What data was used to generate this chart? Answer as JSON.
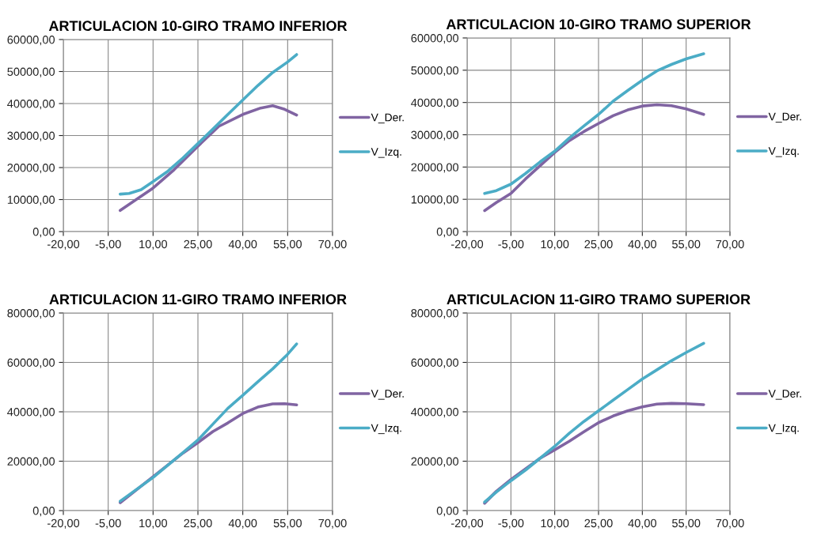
{
  "chart_data": [
    {
      "type": "line",
      "title": "ARTICULACION 10-GIRO TRAMO INFERIOR",
      "legend": "right",
      "grid": true,
      "marker": "none",
      "line_style": "solid",
      "xlim": [
        -20,
        70
      ],
      "xticks": [
        {
          "value": -20,
          "label": "-20,00"
        },
        {
          "value": -5,
          "label": "-5,00"
        },
        {
          "value": 10,
          "label": "10,00"
        },
        {
          "value": 25,
          "label": "25,00"
        },
        {
          "value": 40,
          "label": "40,00"
        },
        {
          "value": 55,
          "label": "55,00"
        },
        {
          "value": 70,
          "label": "70,00"
        }
      ],
      "ylim": [
        0,
        60000
      ],
      "yticks": [
        {
          "value": 0,
          "label": "0,00"
        },
        {
          "value": 10000,
          "label": "10000,00"
        },
        {
          "value": 20000,
          "label": "20000,00"
        },
        {
          "value": 30000,
          "label": "30000,00"
        },
        {
          "value": 40000,
          "label": "40000,00"
        },
        {
          "value": 50000,
          "label": "50000,00"
        },
        {
          "value": 60000,
          "label": "60000,00"
        }
      ],
      "series": [
        {
          "name": "V_Der.",
          "color": "#8064a2",
          "x": [
            -1,
            10,
            17,
            25,
            32,
            40,
            46,
            50,
            54,
            58
          ],
          "values": [
            6600,
            13600,
            19300,
            26700,
            32900,
            36600,
            38600,
            39300,
            38200,
            36400
          ]
        },
        {
          "name": "V_Izq.",
          "color": "#4bacc6",
          "x": [
            -1,
            2,
            6,
            10,
            15,
            20,
            25,
            30,
            35,
            40,
            45,
            50,
            55,
            58
          ],
          "values": [
            11700,
            11900,
            13100,
            15600,
            18900,
            23000,
            27500,
            32000,
            36600,
            41100,
            45600,
            49700,
            53000,
            55300
          ]
        }
      ]
    },
    {
      "type": "line",
      "title": "ARTICULACION 10-GIRO TRAMO SUPERIOR",
      "legend": "right",
      "grid": true,
      "marker": "none",
      "line_style": "solid",
      "xlim": [
        -20,
        70
      ],
      "xticks": [
        {
          "value": -20,
          "label": "-20,00"
        },
        {
          "value": -5,
          "label": "-5,00"
        },
        {
          "value": 10,
          "label": "10,00"
        },
        {
          "value": 25,
          "label": "25,00"
        },
        {
          "value": 40,
          "label": "40,00"
        },
        {
          "value": 55,
          "label": "55,00"
        },
        {
          "value": 70,
          "label": "70,00"
        }
      ],
      "ylim": [
        0,
        60000
      ],
      "yticks": [
        {
          "value": 0,
          "label": "0,00"
        },
        {
          "value": 10000,
          "label": "10000,00"
        },
        {
          "value": 20000,
          "label": "20000,00"
        },
        {
          "value": 30000,
          "label": "30000,00"
        },
        {
          "value": 40000,
          "label": "40000,00"
        },
        {
          "value": 50000,
          "label": "50000,00"
        },
        {
          "value": 60000,
          "label": "60000,00"
        }
      ],
      "series": [
        {
          "name": "V_Der.",
          "color": "#8064a2",
          "x": [
            -14,
            -10,
            -5,
            0,
            5,
            10,
            15,
            20,
            25,
            30,
            35,
            40,
            45,
            50,
            55,
            61
          ],
          "values": [
            6500,
            9000,
            11800,
            16300,
            20400,
            24500,
            28200,
            31000,
            33500,
            35900,
            37700,
            38900,
            39300,
            39000,
            38000,
            36300
          ]
        },
        {
          "name": "V_Izq.",
          "color": "#4bacc6",
          "x": [
            -14,
            -10,
            -5,
            0,
            5,
            10,
            15,
            20,
            25,
            30,
            35,
            40,
            45,
            50,
            55,
            61
          ],
          "values": [
            11800,
            12700,
            14700,
            18000,
            21600,
            24900,
            29000,
            32700,
            36300,
            40400,
            43700,
            46900,
            49800,
            51800,
            53500,
            55100
          ]
        }
      ]
    },
    {
      "type": "line",
      "title": "ARTICULACION 11-GIRO TRAMO INFERIOR",
      "legend": "right",
      "grid": true,
      "marker": "none",
      "line_style": "solid",
      "xlim": [
        -20,
        70
      ],
      "xticks": [
        {
          "value": -20,
          "label": "-20,00"
        },
        {
          "value": -5,
          "label": "-5,00"
        },
        {
          "value": 10,
          "label": "10,00"
        },
        {
          "value": 25,
          "label": "25,00"
        },
        {
          "value": 40,
          "label": "40,00"
        },
        {
          "value": 55,
          "label": "55,00"
        },
        {
          "value": 70,
          "label": "70,00"
        }
      ],
      "ylim": [
        0,
        80000
      ],
      "yticks": [
        {
          "value": 0,
          "label": "0,00"
        },
        {
          "value": 20000,
          "label": "20000,00"
        },
        {
          "value": 40000,
          "label": "40000,00"
        },
        {
          "value": 60000,
          "label": "60000,00"
        },
        {
          "value": 80000,
          "label": "80000,00"
        }
      ],
      "series": [
        {
          "name": "V_Der.",
          "color": "#8064a2",
          "x": [
            -1,
            10,
            20,
            25,
            30,
            35,
            40,
            45,
            50,
            54,
            58
          ],
          "values": [
            3200,
            13700,
            23300,
            27500,
            32000,
            35500,
            39300,
            41900,
            43200,
            43300,
            42800
          ]
        },
        {
          "name": "V_Izq.",
          "color": "#4bacc6",
          "x": [
            -1,
            10,
            20,
            25,
            30,
            35,
            40,
            45,
            50,
            55,
            58
          ],
          "values": [
            3800,
            13400,
            23500,
            28600,
            35000,
            41400,
            46700,
            52100,
            57400,
            63300,
            67500
          ]
        }
      ]
    },
    {
      "type": "line",
      "title": "ARTICULACION 11-GIRO TRAMO SUPERIOR",
      "legend": "right",
      "grid": true,
      "marker": "none",
      "line_style": "solid",
      "xlim": [
        -20,
        70
      ],
      "xticks": [
        {
          "value": -20,
          "label": "-20,00"
        },
        {
          "value": -5,
          "label": "-5,00"
        },
        {
          "value": 10,
          "label": "10,00"
        },
        {
          "value": 25,
          "label": "25,00"
        },
        {
          "value": 40,
          "label": "40,00"
        },
        {
          "value": 55,
          "label": "55,00"
        },
        {
          "value": 70,
          "label": "70,00"
        }
      ],
      "ylim": [
        0,
        80000
      ],
      "yticks": [
        {
          "value": 0,
          "label": "0,00"
        },
        {
          "value": 20000,
          "label": "20000,00"
        },
        {
          "value": 40000,
          "label": "40000,00"
        },
        {
          "value": 60000,
          "label": "60000,00"
        },
        {
          "value": 80000,
          "label": "80000,00"
        }
      ],
      "series": [
        {
          "name": "V_Der.",
          "color": "#8064a2",
          "x": [
            -14,
            -10,
            -5,
            0,
            5,
            10,
            15,
            20,
            25,
            30,
            35,
            40,
            45,
            50,
            55,
            61
          ],
          "values": [
            3000,
            7800,
            12600,
            16900,
            21200,
            24600,
            28100,
            31900,
            35600,
            38300,
            40400,
            42000,
            43100,
            43400,
            43300,
            42900
          ]
        },
        {
          "name": "V_Izq.",
          "color": "#4bacc6",
          "x": [
            -14,
            -10,
            -5,
            0,
            5,
            10,
            15,
            20,
            25,
            30,
            35,
            40,
            45,
            50,
            55,
            61
          ],
          "values": [
            3500,
            7500,
            12100,
            16400,
            21200,
            26000,
            31300,
            36100,
            40400,
            44700,
            49000,
            53300,
            57000,
            60700,
            64000,
            67700
          ]
        }
      ]
    }
  ]
}
